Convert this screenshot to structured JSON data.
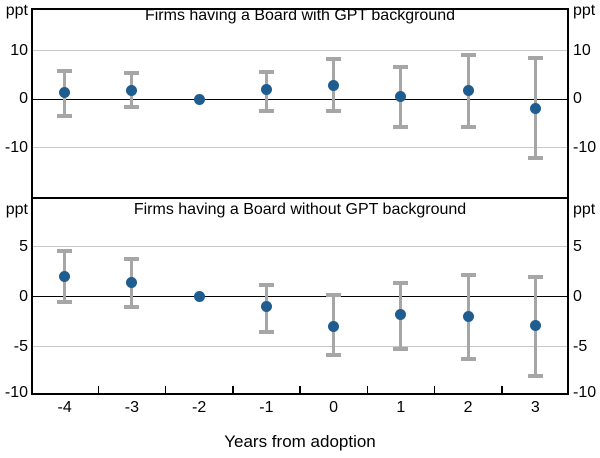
{
  "colors": {
    "dot": "#1f5c8f",
    "error_bar": "#a6a6a6",
    "gridline": "#c8c8c8",
    "axis": "#000000"
  },
  "x_axis": {
    "title": "Years from adoption",
    "labels": [
      "-4",
      "-3",
      "-2",
      "-1",
      "0",
      "1",
      "2",
      "3"
    ]
  },
  "chart_data": [
    {
      "type": "scatter",
      "error_bars": true,
      "title": "Firms having a Board with GPT background",
      "unit_label": "ppt",
      "yticks": [
        10,
        0,
        -10
      ],
      "ylim": [
        -20.35,
        18.85
      ],
      "x": [
        -4,
        -3,
        -2,
        -1,
        0,
        1,
        2,
        3
      ],
      "values": [
        1.5,
        1.8,
        0,
        2.0,
        2.8,
        0.5,
        1.9,
        -1.9
      ],
      "ci_low": [
        -3.5,
        -1.6,
        null,
        -2.3,
        -2.5,
        -5.7,
        -5.6,
        -12.2
      ],
      "ci_high": [
        5.8,
        5.5,
        null,
        5.7,
        8.3,
        6.7,
        9.2,
        8.5
      ],
      "reference_point_x": -2
    },
    {
      "type": "scatter",
      "error_bars": true,
      "title": "Firms having a Board without GPT background",
      "unit_label": "ppt",
      "yticks": [
        5,
        0,
        -5,
        -10
      ],
      "ylim": [
        -9.85,
        9.85
      ],
      "x": [
        -4,
        -3,
        -2,
        -1,
        0,
        1,
        2,
        3
      ],
      "values": [
        2.0,
        1.4,
        0,
        -1.0,
        -3.0,
        -1.8,
        -2.0,
        -2.9
      ],
      "ci_low": [
        -0.5,
        -1.0,
        null,
        -3.5,
        -5.8,
        -5.2,
        -6.2,
        -7.9
      ],
      "ci_high": [
        4.6,
        3.8,
        null,
        1.2,
        0.2,
        1.4,
        2.2,
        2.0
      ],
      "reference_point_x": -2
    }
  ]
}
